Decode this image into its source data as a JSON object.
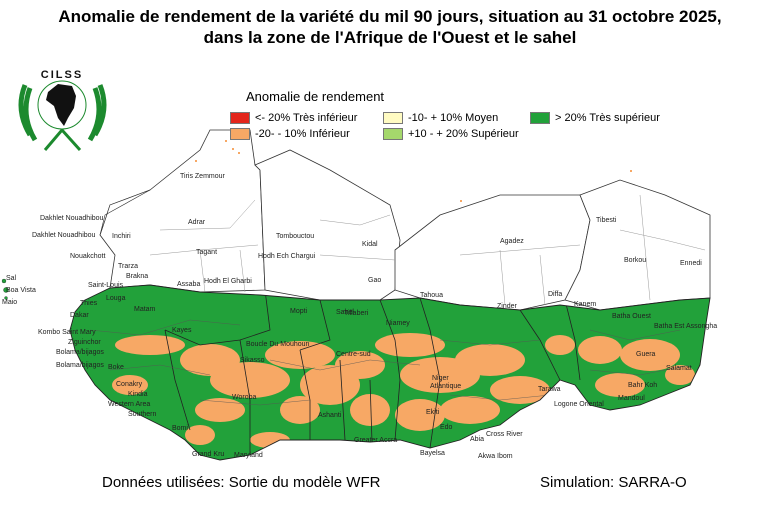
{
  "title": {
    "line1": "Anomalie de rendement de la variété du mil 90 jours, situation au 31 octobre 2025,",
    "line2": "dans la zone de l'Afrique de l'Ouest et le sahel"
  },
  "logo": {
    "text": "CILSS"
  },
  "legend": {
    "title": "Anomalie de rendement",
    "items": [
      {
        "label": "<- 20% Très inférieur",
        "color": "#e3261c"
      },
      {
        "label": "-10- + 10% Moyen",
        "color": "#fffbc2"
      },
      {
        "label": "> 20% Très supérieur",
        "color": "#22a13a"
      },
      {
        "label": "-20- - 10%  Inférieur",
        "color": "#f7a865"
      },
      {
        "label": "+10 - + 20% Supérieur",
        "color": "#a5d86c"
      }
    ]
  },
  "colors": {
    "very_superior": "#22a13a",
    "inferior": "#f7a865",
    "no_data": "#ffffff",
    "border": "#333333"
  },
  "map_labels": [
    "Tiris Zemmour",
    "Adrar",
    "Tagant",
    "Hodh Ech Chargui",
    "Hodh El Gharbi",
    "Dakhlet Nouadhibou",
    "Dakhlet Nouadhibou",
    "Inchiri",
    "Nouakchott",
    "Trarza",
    "Brakna",
    "Assaba",
    "Saint-Louis",
    "Tombouctou",
    "Kidal",
    "Gao",
    "Agadez",
    "Tahoua",
    "Zinder",
    "Diffa",
    "Tibesti",
    "Borkou",
    "Ennedi",
    "Kanem",
    "Batha Ouest",
    "Batha Est",
    "Assongha",
    "Thies",
    "Dakar",
    "Louga",
    "Matam",
    "Mopti",
    "Tillaberi",
    "Niamey",
    "Sahel",
    "Kombo Saint Mary",
    "Ziguinchor",
    "Bolama/bijagos",
    "Bolama/bijagos",
    "Boke",
    "Conakry",
    "Kindia",
    "Western Area",
    "Southern",
    "Bomi",
    "Grand Kru",
    "Maryland",
    "Greater Accra",
    "Bayelsa",
    "Akwa Ibom",
    "Cross River",
    "Logone Oriental",
    "Guera",
    "Salamat",
    "Kayes",
    "Sikasso",
    "Boucle Du Mouhoun",
    "Centre-sud",
    "Atlantique",
    "Niger",
    "Ekiti",
    "Edo",
    "Abia",
    "Tarawa",
    "Bahr Koh",
    "Mandoul",
    "Sal",
    "Boa Vista",
    "Maio",
    "Ashanti",
    "Woroba"
  ],
  "footer": {
    "data_source": "Données utilisées: Sortie du modèle WFR",
    "simulation": "Simulation: SARRA-O"
  }
}
